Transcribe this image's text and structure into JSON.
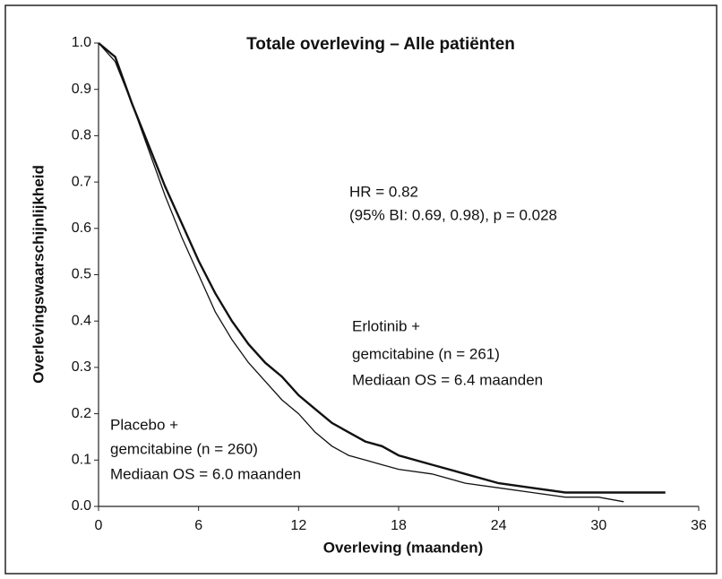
{
  "chart_data": {
    "type": "line",
    "title": "Totale overleving – Alle patiënten",
    "x_label": "Overleving (maanden)",
    "y_label": "Overlevingswaarschijnlijkheid",
    "x": [
      0,
      1,
      2,
      3,
      4,
      5,
      6,
      7,
      8,
      9,
      10,
      11,
      12,
      13,
      14,
      15,
      16,
      17,
      18,
      20,
      22,
      24,
      26,
      28,
      30,
      31.5,
      34
    ],
    "series": [
      {
        "name": "Erlotinib + gemcitabine",
        "color": "#111111",
        "width": 2.4,
        "values": [
          1.0,
          0.97,
          0.87,
          0.78,
          0.69,
          0.61,
          0.53,
          0.46,
          0.4,
          0.35,
          0.31,
          0.28,
          0.24,
          0.21,
          0.18,
          0.16,
          0.14,
          0.13,
          0.11,
          0.09,
          0.07,
          0.05,
          0.04,
          0.03,
          0.03,
          0.03,
          0.03
        ]
      },
      {
        "name": "Placebo + gemcitabine",
        "color": "#111111",
        "width": 1.3,
        "values": [
          1.0,
          0.96,
          0.87,
          0.77,
          0.67,
          0.58,
          0.5,
          0.42,
          0.36,
          0.31,
          0.27,
          0.23,
          0.2,
          0.16,
          0.13,
          0.11,
          0.1,
          0.09,
          0.08,
          0.07,
          0.05,
          0.04,
          0.03,
          0.02,
          0.02,
          0.01,
          null
        ]
      }
    ],
    "xlim": [
      0,
      36
    ],
    "xticks": [
      0,
      6,
      12,
      18,
      24,
      30,
      36
    ],
    "ylim": [
      0,
      1
    ],
    "yticks": [
      {
        "value": 0,
        "label": "0.0"
      },
      0.1,
      0.2,
      0.3,
      0.4,
      0.5,
      0.6,
      0.7,
      0.8,
      0.9,
      {
        "value": 1,
        "label": "1.0"
      }
    ],
    "annotations": [
      "HR = 0.82",
      "(95% BI: 0.69, 0.98), p = 0.028",
      "Erlotinib +",
      "gemcitabine (n = 261)",
      "Mediaan OS = 6.4 maanden",
      "Placebo +",
      "gemcitabine (n = 260)",
      "Mediaan OS = 6.0 maanden"
    ]
  }
}
